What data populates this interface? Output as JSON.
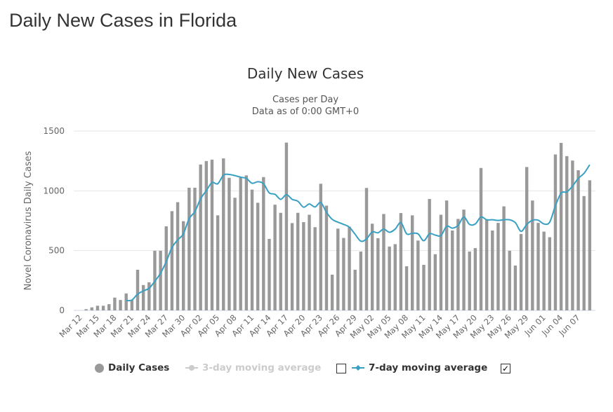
{
  "page": {
    "title": "Daily New Cases in Florida"
  },
  "chart_data": {
    "type": "bar",
    "title": "Daily New Cases",
    "subtitle": [
      "Cases per Day",
      "Data as of 0:00 GMT+0"
    ],
    "xlabel": "",
    "ylabel": "Novel Coronavirus Daily Cases",
    "ylim": [
      0,
      1500
    ],
    "yticks": [
      0,
      500,
      1000,
      1500
    ],
    "grid": true,
    "legend_placement": "bottom",
    "categories": [
      "Mar 12",
      "Mar 13",
      "Mar 14",
      "Mar 15",
      "Mar 16",
      "Mar 17",
      "Mar 18",
      "Mar 19",
      "Mar 20",
      "Mar 21",
      "Mar 22",
      "Mar 23",
      "Mar 24",
      "Mar 25",
      "Mar 26",
      "Mar 27",
      "Mar 28",
      "Mar 29",
      "Mar 30",
      "Mar 31",
      "Apr 01",
      "Apr 02",
      "Apr 03",
      "Apr 04",
      "Apr 05",
      "Apr 06",
      "Apr 07",
      "Apr 08",
      "Apr 09",
      "Apr 10",
      "Apr 11",
      "Apr 12",
      "Apr 13",
      "Apr 14",
      "Apr 15",
      "Apr 16",
      "Apr 17",
      "Apr 18",
      "Apr 19",
      "Apr 20",
      "Apr 21",
      "Apr 22",
      "Apr 23",
      "Apr 24",
      "Apr 25",
      "Apr 26",
      "Apr 27",
      "Apr 28",
      "Apr 29",
      "Apr 30",
      "May 01",
      "May 02",
      "May 03",
      "May 04",
      "May 05",
      "May 06",
      "May 07",
      "May 08",
      "May 09",
      "May 10",
      "May 11",
      "May 12",
      "May 13",
      "May 14",
      "May 15",
      "May 16",
      "May 17",
      "May 18",
      "May 19",
      "May 20",
      "May 21",
      "May 22",
      "May 23",
      "May 24",
      "May 25",
      "May 26",
      "May 27",
      "May 28",
      "May 29",
      "May 30",
      "May 31",
      "Jun 01",
      "Jun 02",
      "Jun 03",
      "Jun 04",
      "Jun 05",
      "Jun 06",
      "Jun 07",
      "Jun 08",
      "Jun 09"
    ],
    "xtick_labels": [
      "Mar 12",
      "Mar 15",
      "Mar 18",
      "Mar 21",
      "Mar 24",
      "Mar 27",
      "Mar 30",
      "Apr 02",
      "Apr 05",
      "Apr 08",
      "Apr 11",
      "Apr 14",
      "Apr 17",
      "Apr 20",
      "Apr 23",
      "Apr 26",
      "Apr 29",
      "May 02",
      "May 05",
      "May 08",
      "May 11",
      "May 14",
      "May 17",
      "May 20",
      "May 23",
      "May 26",
      "May 29",
      "Jun 01",
      "Jun 04",
      "Jun 07"
    ],
    "series": [
      {
        "name": "Daily Cases",
        "type": "bar",
        "color": "#999999",
        "visible": true,
        "values": [
          0,
          10,
          25,
          39,
          39,
          52,
          107,
          87,
          142,
          87,
          340,
          212,
          235,
          499,
          499,
          703,
          830,
          905,
          746,
          1026,
          1026,
          1220,
          1249,
          1261,
          795,
          1271,
          1109,
          942,
          1110,
          1129,
          1010,
          900,
          1115,
          598,
          884,
          816,
          1403,
          730,
          816,
          738,
          800,
          696,
          1059,
          876,
          299,
          684,
          606,
          700,
          340,
          492,
          1024,
          725,
          604,
          806,
          534,
          554,
          814,
          369,
          795,
          584,
          381,
          932,
          470,
          800,
          919,
          668,
          765,
          843,
          492,
          521,
          1191,
          758,
          668,
          732,
          870,
          499,
          375,
          639,
          1199,
          919,
          732,
          659,
          612,
          1304,
          1401,
          1290,
          1253,
          1172,
          956,
          1088
        ]
      },
      {
        "name": "3-day moving average",
        "type": "line",
        "color": "#cccccc",
        "visible": false,
        "checked": false
      },
      {
        "name": "7-day moving average",
        "type": "line",
        "color": "#39a0c3",
        "visible": true,
        "checked": true,
        "values": [
          null,
          null,
          null,
          null,
          null,
          null,
          null,
          null,
          82,
          87,
          136,
          163,
          185,
          243,
          311,
          408,
          525,
          589,
          641,
          767,
          826,
          933,
          1001,
          1069,
          1059,
          1131,
          1137,
          1127,
          1114,
          1104,
          1063,
          1076,
          1059,
          983,
          971,
          929,
          968,
          929,
          913,
          863,
          890,
          865,
          902,
          820,
          762,
          738,
          719,
          696,
          637,
          579,
          598,
          656,
          649,
          680,
          653,
          680,
          734,
          641,
          645,
          640,
          583,
          641,
          630,
          626,
          703,
          688,
          711,
          781,
          719,
          723,
          781,
          758,
          758,
          752,
          758,
          758,
          734,
          661,
          719,
          754,
          754,
          723,
          738,
          874,
          981,
          991,
          1040,
          1104,
          1146,
          1218
        ]
      }
    ]
  }
}
